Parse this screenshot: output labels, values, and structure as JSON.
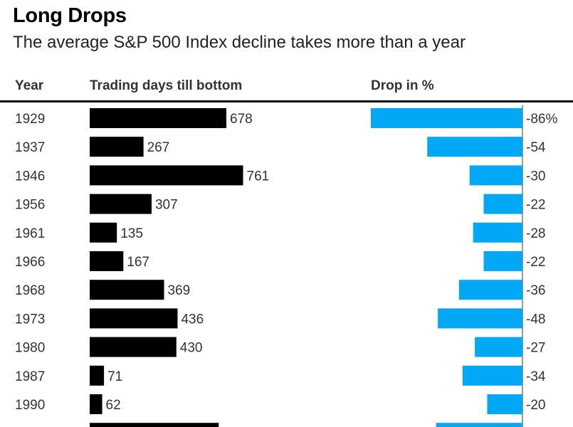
{
  "title": "Long Drops",
  "subtitle": "The average S&P 500 Index decline takes more than a year",
  "chart_data": {
    "type": "bar",
    "title": "Long Drops",
    "subtitle": "The average S&P 500 Index decline takes more than a year",
    "columns": [
      "Year",
      "Trading days till bottom",
      "Drop in %"
    ],
    "categories": [
      "1929",
      "1937",
      "1946",
      "1956",
      "1961",
      "1966",
      "1968",
      "1973",
      "1980",
      "1987",
      "1990",
      ""
    ],
    "series": [
      {
        "name": "Trading days till bottom",
        "values": [
          678,
          267,
          761,
          307,
          135,
          167,
          369,
          436,
          430,
          71,
          62,
          640
        ],
        "color": "#000000"
      },
      {
        "name": "Drop in %",
        "values": [
          -86,
          -54,
          -30,
          -22,
          -28,
          -22,
          -36,
          -48,
          -27,
          -34,
          -20,
          -49
        ],
        "color": "#00a8f5"
      }
    ],
    "labels_days": [
      "678",
      "267",
      "761",
      "307",
      "135",
      "167",
      "369",
      "436",
      "430",
      "71",
      "62",
      ""
    ],
    "labels_drop": [
      "-86%",
      "-54",
      "-30",
      "-22",
      "-28",
      "-22",
      "-36",
      "-48",
      "-27",
      "-34",
      "-20",
      ""
    ]
  }
}
